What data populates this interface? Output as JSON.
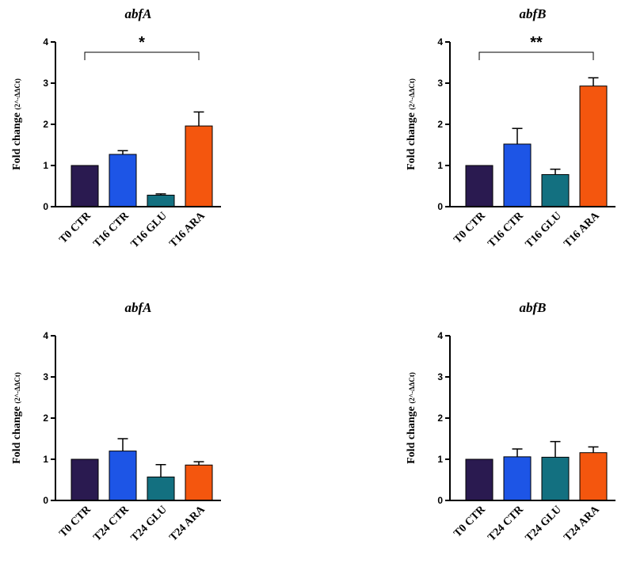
{
  "chart_data": [
    {
      "type": "bar",
      "title": "abfA",
      "ylabel": "Fold change",
      "ylabel_unit": "(2^-ΔΔCt)",
      "categories": [
        "T0 CTR",
        "T16 CTR",
        "T16 GLU",
        "T16 ARA"
      ],
      "values": [
        1.0,
        1.27,
        0.28,
        1.96
      ],
      "errors": [
        0.0,
        0.09,
        0.03,
        0.34
      ],
      "colors": [
        "#2a1a50",
        "#1d55e6",
        "#137080",
        "#f4560e"
      ],
      "ylim": [
        0,
        4
      ],
      "yticks": [
        "0",
        "1",
        "2",
        "3",
        "4"
      ],
      "significance": {
        "from": 0,
        "to": 3,
        "label": "*",
        "y": 3.75
      }
    },
    {
      "type": "bar",
      "title": "abfB",
      "ylabel": "Fold change",
      "ylabel_unit": "(2^-ΔΔCt)",
      "categories": [
        "T0 CTR",
        "T16 CTR",
        "T16 GLU",
        "T16 ARA"
      ],
      "values": [
        1.0,
        1.52,
        0.78,
        2.93
      ],
      "errors": [
        0.0,
        0.38,
        0.13,
        0.2
      ],
      "colors": [
        "#2a1a50",
        "#1d55e6",
        "#137080",
        "#f4560e"
      ],
      "ylim": [
        0,
        4
      ],
      "yticks": [
        "0",
        "1",
        "2",
        "3",
        "4"
      ],
      "significance": {
        "from": 0,
        "to": 3,
        "label": "**",
        "y": 3.75
      }
    },
    {
      "type": "bar",
      "title": "abfA",
      "ylabel": "Fold change",
      "ylabel_unit": "(2^-ΔΔCt)",
      "categories": [
        "T0 CTR",
        "T24 CTR",
        "T24 GLU",
        "T24 ARA"
      ],
      "values": [
        1.0,
        1.2,
        0.57,
        0.86
      ],
      "errors": [
        0.0,
        0.3,
        0.3,
        0.08
      ],
      "colors": [
        "#2a1a50",
        "#1d55e6",
        "#137080",
        "#f4560e"
      ],
      "ylim": [
        0,
        4
      ],
      "yticks": [
        "0",
        "1",
        "2",
        "3",
        "4"
      ],
      "significance": null
    },
    {
      "type": "bar",
      "title": "abfB",
      "ylabel": "Fold change",
      "ylabel_unit": "(2^-ΔΔCt)",
      "categories": [
        "T0 CTR",
        "T24 CTR",
        "T24 GLU",
        "T24 ARA"
      ],
      "values": [
        1.0,
        1.06,
        1.05,
        1.16
      ],
      "errors": [
        0.0,
        0.19,
        0.38,
        0.14
      ],
      "colors": [
        "#2a1a50",
        "#1d55e6",
        "#137080",
        "#f4560e"
      ],
      "ylim": [
        0,
        4
      ],
      "yticks": [
        "0",
        "1",
        "2",
        "3",
        "4"
      ],
      "significance": null
    }
  ]
}
